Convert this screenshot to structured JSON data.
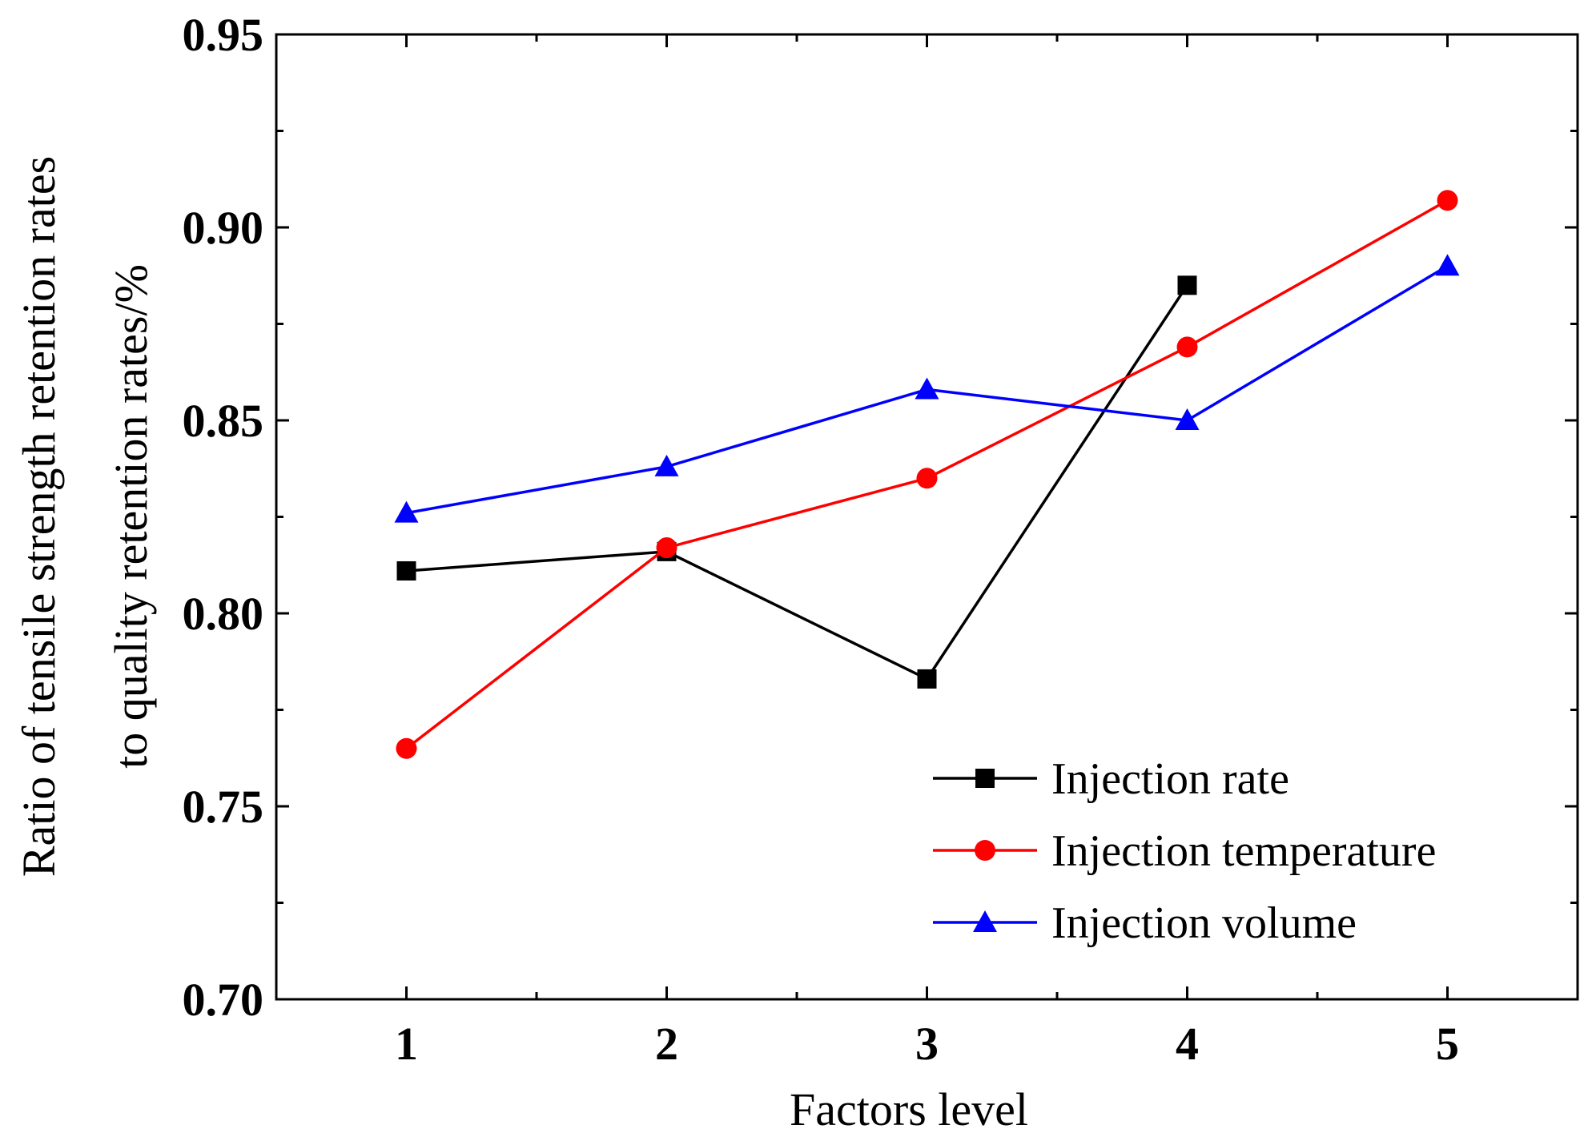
{
  "chart_data": {
    "type": "line",
    "title": "",
    "xlabel": "Factors level",
    "ylabel_line1": "Ratio of tensile strength retention rates",
    "ylabel_line2": "to quality retention rates/%",
    "x": [
      1,
      2,
      3,
      4,
      5
    ],
    "x_tick_labels": [
      "1",
      "2",
      "3",
      "4",
      "5"
    ],
    "xlim": [
      0.5,
      5.5
    ],
    "ylim": [
      0.7,
      0.95
    ],
    "y_ticks": [
      0.7,
      0.75,
      0.8,
      0.85,
      0.9,
      0.95
    ],
    "y_tick_labels": [
      "0.70",
      "0.75",
      "0.80",
      "0.85",
      "0.90",
      "0.95"
    ],
    "grid": false,
    "legend_position": "bottom-right",
    "series": [
      {
        "name": "Injection rate",
        "color": "#000000",
        "marker": "square",
        "x": [
          1,
          2,
          3,
          4
        ],
        "values": [
          0.811,
          0.816,
          0.783,
          0.885
        ]
      },
      {
        "name": "Injection temperature",
        "color": "#ff0000",
        "marker": "circle",
        "x": [
          1,
          2,
          3,
          4,
          5
        ],
        "values": [
          0.765,
          0.817,
          0.835,
          0.869,
          0.907
        ]
      },
      {
        "name": "Injection volume",
        "color": "#0000ff",
        "marker": "triangle",
        "x": [
          1,
          2,
          3,
          4,
          5
        ],
        "values": [
          0.826,
          0.838,
          0.858,
          0.85,
          0.89
        ]
      }
    ]
  }
}
